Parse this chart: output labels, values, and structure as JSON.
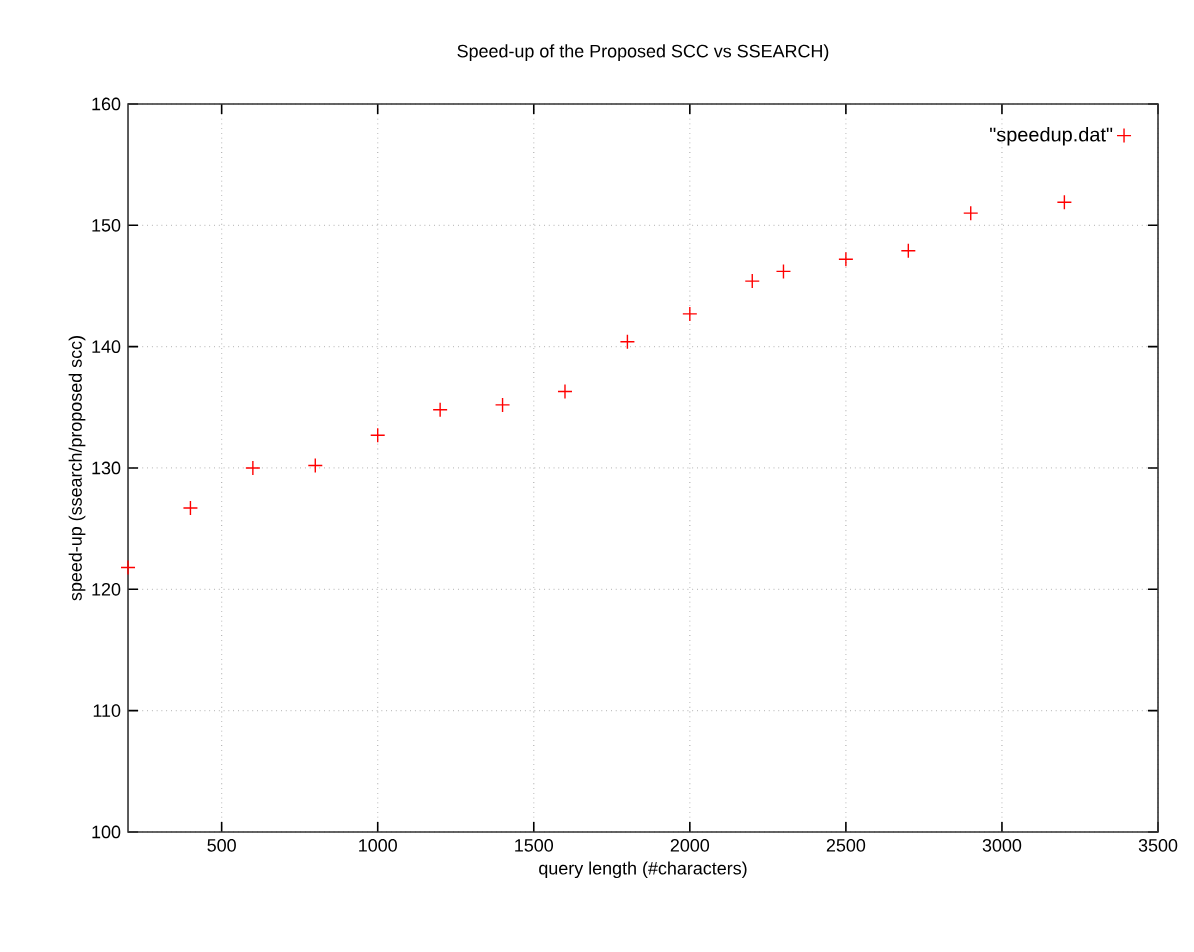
{
  "chart_data": {
    "type": "scatter",
    "title": "Speed-up of the Proposed SCC vs SSEARCH)",
    "xlabel": "query length (#characters)",
    "ylabel": "speed-up (ssearch/proposed scc)",
    "x": [
      200,
      400,
      600,
      800,
      1000,
      1200,
      1400,
      1600,
      1800,
      2000,
      2200,
      2300,
      2500,
      2700,
      2900,
      3200
    ],
    "series": [
      {
        "name": "\"speedup.dat\"",
        "color": "#ff0000",
        "values": [
          121.8,
          126.7,
          130.0,
          130.2,
          132.7,
          134.8,
          135.2,
          136.3,
          140.4,
          142.7,
          145.4,
          146.2,
          147.2,
          147.9,
          151.0,
          151.9
        ]
      }
    ],
    "xlim": [
      200,
      3500
    ],
    "ylim": [
      100,
      160
    ],
    "xticks": [
      500,
      1000,
      1500,
      2000,
      2500,
      3000,
      3500
    ],
    "yticks": [
      100,
      110,
      120,
      130,
      140,
      150,
      160
    ],
    "grid": true,
    "legend": "top right",
    "marker": "cross"
  }
}
